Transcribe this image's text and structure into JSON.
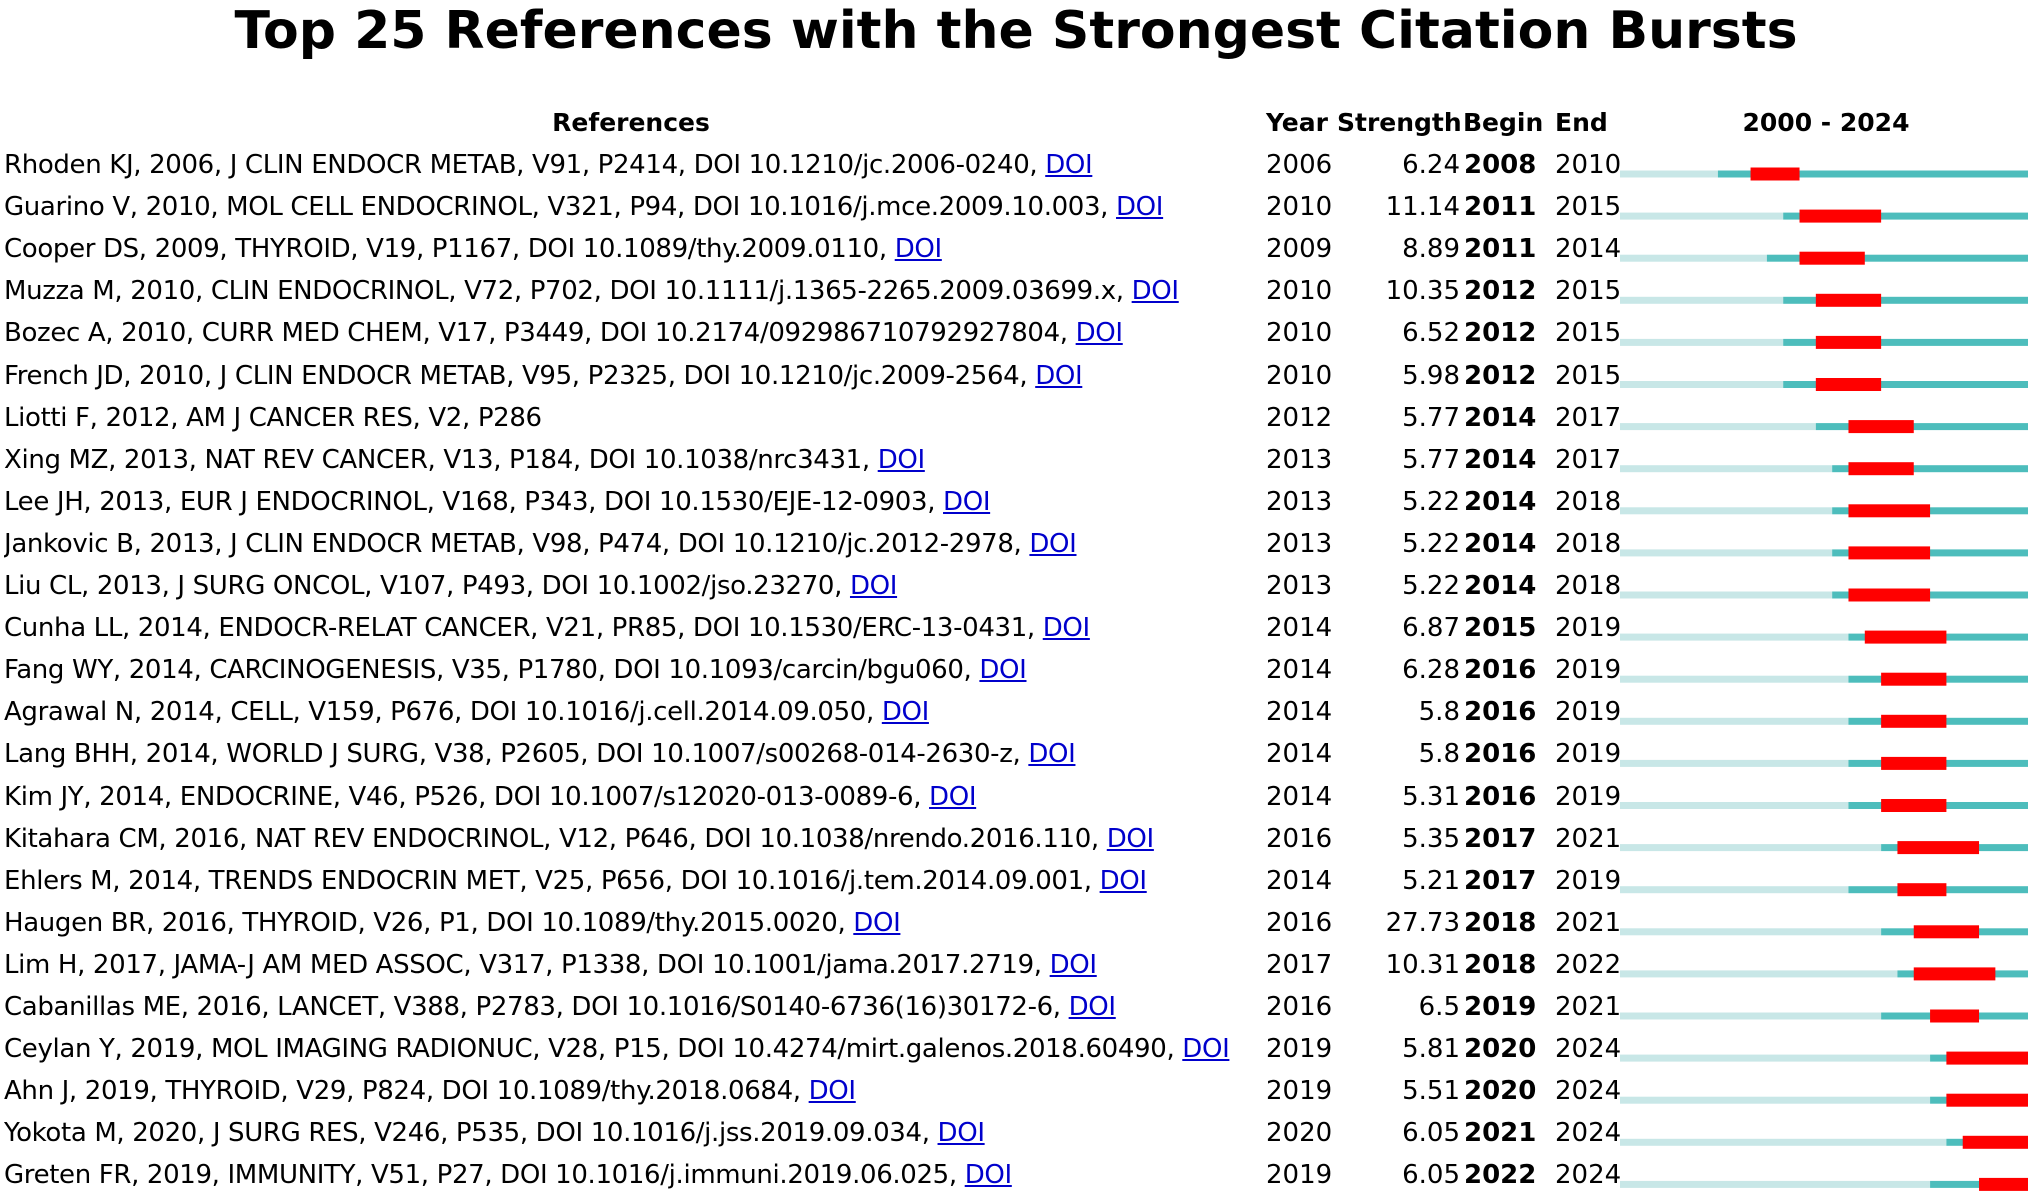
{
  "chart_data": {
    "type": "table",
    "title": "Top 25 References with the Strongest Citation Bursts",
    "columns": [
      "References",
      "Year",
      "Strength",
      "Begin",
      "End",
      "2000 - 2024"
    ],
    "range": [
      2000,
      2024
    ],
    "colors": {
      "before": "#c8e7e7",
      "active": "#4dbdbc",
      "burst": "#ff0000"
    },
    "rows": [
      {
        "ref": "Rhoden KJ, 2006, J CLIN ENDOCR METAB, V91, P2414, DOI 10.1210/jc.2006-0240, ",
        "doi": "DOI",
        "year": "2006",
        "strength": "6.24",
        "begin": "2008",
        "end": "2010"
      },
      {
        "ref": "Guarino V, 2010, MOL CELL ENDOCRINOL, V321, P94, DOI 10.1016/j.mce.2009.10.003, ",
        "doi": "DOI",
        "year": "2010",
        "strength": "11.14",
        "begin": "2011",
        "end": "2015"
      },
      {
        "ref": "Cooper DS, 2009, THYROID, V19, P1167, DOI 10.1089/thy.2009.0110, ",
        "doi": "DOI",
        "year": "2009",
        "strength": "8.89",
        "begin": "2011",
        "end": "2014"
      },
      {
        "ref": "Muzza M, 2010, CLIN ENDOCRINOL, V72, P702, DOI 10.1111/j.1365-2265.2009.03699.x, ",
        "doi": "DOI",
        "year": "2010",
        "strength": "10.35",
        "begin": "2012",
        "end": "2015"
      },
      {
        "ref": "Bozec A, 2010, CURR MED CHEM, V17, P3449, DOI 10.2174/092986710792927804, ",
        "doi": "DOI",
        "year": "2010",
        "strength": "6.52",
        "begin": "2012",
        "end": "2015"
      },
      {
        "ref": "French JD, 2010, J CLIN ENDOCR METAB, V95, P2325, DOI 10.1210/jc.2009-2564, ",
        "doi": "DOI",
        "year": "2010",
        "strength": "5.98",
        "begin": "2012",
        "end": "2015"
      },
      {
        "ref": "Liotti F, 2012, AM J CANCER RES, V2, P286",
        "doi": "",
        "year": "2012",
        "strength": "5.77",
        "begin": "2014",
        "end": "2017"
      },
      {
        "ref": "Xing MZ, 2013, NAT REV CANCER, V13, P184, DOI 10.1038/nrc3431, ",
        "doi": "DOI",
        "year": "2013",
        "strength": "5.77",
        "begin": "2014",
        "end": "2017"
      },
      {
        "ref": "Lee JH, 2013, EUR J ENDOCRINOL, V168, P343, DOI 10.1530/EJE-12-0903, ",
        "doi": "DOI",
        "year": "2013",
        "strength": "5.22",
        "begin": "2014",
        "end": "2018"
      },
      {
        "ref": "Jankovic B, 2013, J CLIN ENDOCR METAB, V98, P474, DOI 10.1210/jc.2012-2978, ",
        "doi": "DOI",
        "year": "2013",
        "strength": "5.22",
        "begin": "2014",
        "end": "2018"
      },
      {
        "ref": "Liu CL, 2013, J SURG ONCOL, V107, P493, DOI 10.1002/jso.23270, ",
        "doi": "DOI",
        "year": "2013",
        "strength": "5.22",
        "begin": "2014",
        "end": "2018"
      },
      {
        "ref": "Cunha LL, 2014, ENDOCR-RELAT CANCER, V21, PR85, DOI 10.1530/ERC-13-0431, ",
        "doi": "DOI",
        "year": "2014",
        "strength": "6.87",
        "begin": "2015",
        "end": "2019"
      },
      {
        "ref": "Fang WY, 2014, CARCINOGENESIS, V35, P1780, DOI 10.1093/carcin/bgu060, ",
        "doi": "DOI",
        "year": "2014",
        "strength": "6.28",
        "begin": "2016",
        "end": "2019"
      },
      {
        "ref": "Agrawal N, 2014, CELL, V159, P676, DOI 10.1016/j.cell.2014.09.050, ",
        "doi": "DOI",
        "year": "2014",
        "strength": "5.8",
        "begin": "2016",
        "end": "2019"
      },
      {
        "ref": "Lang BHH, 2014, WORLD J SURG, V38, P2605, DOI 10.1007/s00268-014-2630-z, ",
        "doi": "DOI",
        "year": "2014",
        "strength": "5.8",
        "begin": "2016",
        "end": "2019"
      },
      {
        "ref": "Kim JY, 2014, ENDOCRINE, V46, P526, DOI 10.1007/s12020-013-0089-6, ",
        "doi": "DOI",
        "year": "2014",
        "strength": "5.31",
        "begin": "2016",
        "end": "2019"
      },
      {
        "ref": "Kitahara CM, 2016, NAT REV ENDOCRINOL, V12, P646, DOI 10.1038/nrendo.2016.110, ",
        "doi": "DOI",
        "year": "2016",
        "strength": "5.35",
        "begin": "2017",
        "end": "2021"
      },
      {
        "ref": "Ehlers M, 2014, TRENDS ENDOCRIN MET, V25, P656, DOI 10.1016/j.tem.2014.09.001, ",
        "doi": "DOI",
        "year": "2014",
        "strength": "5.21",
        "begin": "2017",
        "end": "2019"
      },
      {
        "ref": "Haugen BR, 2016, THYROID, V26, P1, DOI 10.1089/thy.2015.0020, ",
        "doi": "DOI",
        "year": "2016",
        "strength": "27.73",
        "begin": "2018",
        "end": "2021"
      },
      {
        "ref": "Lim H, 2017, JAMA-J AM MED ASSOC, V317, P1338, DOI 10.1001/jama.2017.2719, ",
        "doi": "DOI",
        "year": "2017",
        "strength": "10.31",
        "begin": "2018",
        "end": "2022"
      },
      {
        "ref": "Cabanillas ME, 2016, LANCET, V388, P2783, DOI 10.1016/S0140-6736(16)30172-6, ",
        "doi": "DOI",
        "year": "2016",
        "strength": "6.5",
        "begin": "2019",
        "end": "2021"
      },
      {
        "ref": "Ceylan Y, 2019, MOL IMAGING RADIONUC, V28, P15, DOI 10.4274/mirt.galenos.2018.60490, ",
        "doi": "DOI",
        "year": "2019",
        "strength": "5.81",
        "begin": "2020",
        "end": "2024"
      },
      {
        "ref": "Ahn J, 2019, THYROID, V29, P824, DOI 10.1089/thy.2018.0684, ",
        "doi": "DOI",
        "year": "2019",
        "strength": "5.51",
        "begin": "2020",
        "end": "2024"
      },
      {
        "ref": "Yokota M, 2020, J SURG RES, V246, P535, DOI 10.1016/j.jss.2019.09.034, ",
        "doi": "DOI",
        "year": "2020",
        "strength": "6.05",
        "begin": "2021",
        "end": "2024"
      },
      {
        "ref": "Greten FR, 2019, IMMUNITY, V51, P27, DOI 10.1016/j.immuni.2019.06.025, ",
        "doi": "DOI",
        "year": "2019",
        "strength": "6.05",
        "begin": "2022",
        "end": "2024"
      }
    ]
  }
}
